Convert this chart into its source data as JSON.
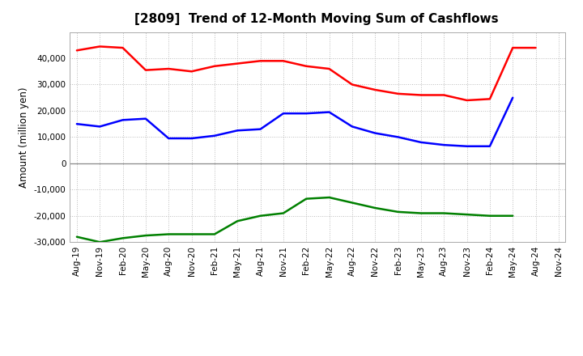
{
  "title": "[2809]  Trend of 12-Month Moving Sum of Cashflows",
  "ylabel": "Amount (million yen)",
  "x_labels": [
    "Aug-19",
    "Nov-19",
    "Feb-20",
    "May-20",
    "Aug-20",
    "Nov-20",
    "Feb-21",
    "May-21",
    "Aug-21",
    "Nov-21",
    "Feb-22",
    "May-22",
    "Aug-22",
    "Nov-22",
    "Feb-23",
    "May-23",
    "Aug-23",
    "Nov-23",
    "Feb-24",
    "May-24",
    "Aug-24",
    "Nov-24"
  ],
  "operating": [
    43000,
    44500,
    44000,
    35500,
    36000,
    35000,
    37000,
    38000,
    39000,
    39000,
    37000,
    36000,
    30000,
    28000,
    26500,
    26000,
    26000,
    24000,
    24500,
    44000,
    44000,
    null
  ],
  "investing": [
    -28000,
    -30000,
    -28500,
    -27500,
    -27000,
    -27000,
    -27000,
    -22000,
    -20000,
    -19000,
    -13500,
    -13000,
    -15000,
    -17000,
    -18500,
    -19000,
    -19000,
    -19500,
    -20000,
    -20000,
    null,
    null
  ],
  "free": [
    15000,
    14000,
    16500,
    17000,
    9500,
    9500,
    10500,
    12500,
    13000,
    19000,
    19000,
    19500,
    14000,
    11500,
    10000,
    8000,
    7000,
    6500,
    6500,
    25000,
    null,
    null
  ],
  "operating_color": "#ff0000",
  "investing_color": "#008000",
  "free_color": "#0000ff",
  "ylim": [
    -30000,
    50000
  ],
  "yticks": [
    -30000,
    -20000,
    -10000,
    0,
    10000,
    20000,
    30000,
    40000
  ],
  "background_color": "#ffffff",
  "grid_color": "#bbbbbb",
  "line_width": 1.8,
  "title_fontsize": 11,
  "tick_fontsize": 7.5,
  "ylabel_fontsize": 8.5,
  "legend_fontsize": 9
}
